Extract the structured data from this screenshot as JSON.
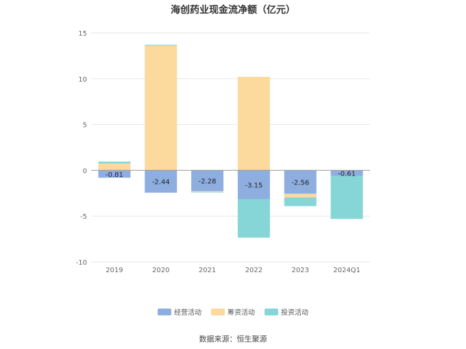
{
  "chart_data": {
    "type": "bar",
    "stacked": true,
    "title": "海创药业现金流净额（亿元）",
    "categories": [
      "2019",
      "2020",
      "2021",
      "2022",
      "2023",
      "2024Q1"
    ],
    "series": [
      {
        "name": "经营活动",
        "color": "#8eaee0",
        "values": [
          -0.81,
          -2.44,
          -2.28,
          -3.15,
          -2.56,
          -0.61
        ],
        "show_labels": true
      },
      {
        "name": "筹资活动",
        "color": "#fcd99d",
        "values": [
          0.75,
          13.6,
          -0.1,
          10.2,
          -0.4,
          0.0
        ],
        "show_labels": false
      },
      {
        "name": "投资活动",
        "color": "#86d6d8",
        "values": [
          0.2,
          0.1,
          -0.05,
          -4.2,
          -0.95,
          -4.7
        ],
        "show_labels": false
      }
    ],
    "yticks": [
      15,
      10,
      5,
      0,
      -5,
      -10
    ],
    "ylim": [
      -10,
      15
    ],
    "grid": true,
    "legend_position": "bottom"
  },
  "source": "数据来源：恒生聚源"
}
